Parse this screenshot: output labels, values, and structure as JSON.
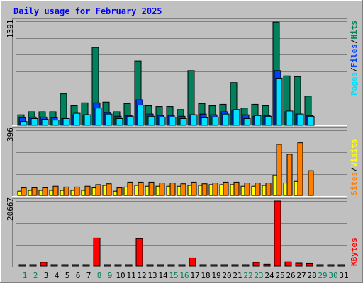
{
  "title": "Daily usage for February 2025",
  "panels": {
    "top": {
      "ymax_label": "1391",
      "legend": [
        "Pages",
        "/",
        "Files",
        "/",
        "Hits"
      ]
    },
    "middle": {
      "ymax_label": "396",
      "legend": [
        "Sites",
        "/",
        "Visits"
      ]
    },
    "bottom": {
      "ymax_label": "20667",
      "legend": [
        "KBytes"
      ]
    }
  },
  "colors": {
    "hits": "#00805c",
    "files": "#0040ff",
    "pages": "#00e0ff",
    "visits": "#ffff00",
    "sites": "#ff8000",
    "kbytes": "#ff0000",
    "weekday_label": "#000000",
    "weekend_label": "#00805c",
    "title": "#0000ff",
    "panel_bg": "#c0c0c0"
  },
  "chart_data": [
    {
      "type": "bar",
      "title": "Daily usage for February 2025",
      "categories": [
        "1",
        "2",
        "3",
        "4",
        "5",
        "6",
        "7",
        "8",
        "9",
        "10",
        "11",
        "12",
        "13",
        "14",
        "15",
        "16",
        "17",
        "18",
        "19",
        "20",
        "21",
        "22",
        "23",
        "24",
        "25",
        "26",
        "27",
        "28",
        "29",
        "30",
        "31"
      ],
      "ylim": [
        0,
        1391
      ],
      "series": [
        {
          "name": "Hits",
          "values": [
            140,
            180,
            180,
            180,
            420,
            260,
            300,
            1040,
            310,
            180,
            290,
            860,
            260,
            250,
            250,
            210,
            730,
            290,
            260,
            280,
            570,
            230,
            280,
            260,
            1380,
            660,
            650,
            390,
            0,
            0,
            0
          ]
        },
        {
          "name": "Files",
          "values": [
            100,
            110,
            110,
            100,
            90,
            140,
            140,
            300,
            170,
            120,
            130,
            340,
            150,
            130,
            130,
            120,
            140,
            150,
            140,
            180,
            200,
            140,
            120,
            130,
            730,
            180,
            150,
            130,
            0,
            0,
            0
          ]
        },
        {
          "name": "Pages",
          "values": [
            50,
            90,
            80,
            70,
            90,
            160,
            140,
            230,
            150,
            90,
            120,
            270,
            120,
            110,
            110,
            90,
            140,
            100,
            110,
            150,
            210,
            90,
            130,
            120,
            630,
            190,
            150,
            120,
            0,
            0,
            0
          ]
        }
      ]
    },
    {
      "type": "bar",
      "categories": [
        "1",
        "2",
        "3",
        "4",
        "5",
        "6",
        "7",
        "8",
        "9",
        "10",
        "11",
        "12",
        "13",
        "14",
        "15",
        "16",
        "17",
        "18",
        "19",
        "20",
        "21",
        "22",
        "23",
        "24",
        "25",
        "26",
        "27",
        "28",
        "29",
        "30",
        "31"
      ],
      "ylim": [
        0,
        396
      ],
      "series": [
        {
          "name": "Visits",
          "values": [
            25,
            30,
            30,
            30,
            30,
            30,
            30,
            45,
            60,
            25,
            50,
            60,
            55,
            55,
            55,
            55,
            60,
            60,
            65,
            65,
            65,
            55,
            55,
            60,
            120,
            75,
            85,
            0,
            0,
            0,
            0
          ]
        },
        {
          "name": "Sites",
          "values": [
            45,
            45,
            45,
            55,
            50,
            50,
            55,
            65,
            70,
            45,
            80,
            80,
            80,
            75,
            75,
            70,
            80,
            70,
            75,
            80,
            80,
            75,
            75,
            75,
            310,
            250,
            320,
            150,
            0,
            0,
            0
          ]
        }
      ]
    },
    {
      "type": "bar",
      "categories": [
        "1",
        "2",
        "3",
        "4",
        "5",
        "6",
        "7",
        "8",
        "9",
        "10",
        "11",
        "12",
        "13",
        "14",
        "15",
        "16",
        "17",
        "18",
        "19",
        "20",
        "21",
        "22",
        "23",
        "24",
        "25",
        "26",
        "27",
        "28",
        "29",
        "30",
        "31"
      ],
      "ylim": [
        0,
        20667
      ],
      "series": [
        {
          "name": "KBytes",
          "values": [
            150,
            150,
            1150,
            150,
            450,
            150,
            250,
            8900,
            350,
            150,
            300,
            8700,
            200,
            350,
            350,
            350,
            2600,
            350,
            450,
            450,
            450,
            250,
            1100,
            600,
            20667,
            1300,
            900,
            800,
            0,
            0,
            0
          ]
        }
      ]
    }
  ]
}
